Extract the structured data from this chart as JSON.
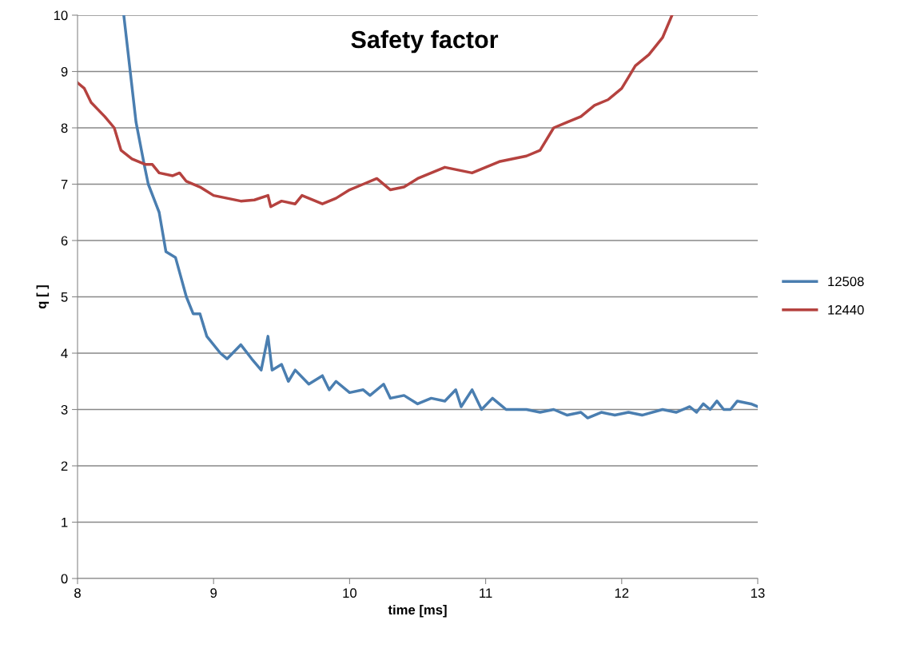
{
  "chart_data": {
    "type": "line",
    "title": "Safety factor",
    "xlabel": "time [ms]",
    "ylabel": "q [ ]",
    "xlim": [
      8,
      13
    ],
    "ylim": [
      0,
      10
    ],
    "xticks": [
      8,
      9,
      10,
      11,
      12,
      13
    ],
    "yticks": [
      0,
      1,
      2,
      3,
      4,
      5,
      6,
      7,
      8,
      9,
      10
    ],
    "grid": "y",
    "legend": "right",
    "marker": "none",
    "line_style": "solid",
    "series": [
      {
        "name": "12508",
        "color": "#4a7eb0",
        "x": [
          8.34,
          8.43,
          8.49,
          8.52,
          8.6,
          8.65,
          8.72,
          8.8,
          8.85,
          8.9,
          8.95,
          9.05,
          9.1,
          9.2,
          9.28,
          9.35,
          9.4,
          9.43,
          9.5,
          9.55,
          9.6,
          9.7,
          9.8,
          9.85,
          9.9,
          10.0,
          10.1,
          10.15,
          10.25,
          10.3,
          10.4,
          10.5,
          10.6,
          10.7,
          10.78,
          10.82,
          10.9,
          10.97,
          11.05,
          11.15,
          11.3,
          11.4,
          11.5,
          11.6,
          11.7,
          11.75,
          11.85,
          11.95,
          12.05,
          12.15,
          12.3,
          12.4,
          12.5,
          12.55,
          12.6,
          12.65,
          12.7,
          12.75,
          12.8,
          12.85,
          12.95,
          13.0
        ],
        "values": [
          10.0,
          8.1,
          7.35,
          7.0,
          6.5,
          5.8,
          5.7,
          5.0,
          4.7,
          4.7,
          4.3,
          4.0,
          3.9,
          4.15,
          3.9,
          3.7,
          4.3,
          3.7,
          3.8,
          3.5,
          3.7,
          3.45,
          3.6,
          3.35,
          3.5,
          3.3,
          3.35,
          3.25,
          3.45,
          3.2,
          3.25,
          3.1,
          3.2,
          3.15,
          3.35,
          3.05,
          3.35,
          3.0,
          3.2,
          3.0,
          3.0,
          2.95,
          3.0,
          2.9,
          2.95,
          2.85,
          2.95,
          2.9,
          2.95,
          2.9,
          3.0,
          2.95,
          3.05,
          2.95,
          3.1,
          3.0,
          3.15,
          3.0,
          3.0,
          3.15,
          3.1,
          3.05
        ]
      },
      {
        "name": "12440",
        "color": "#b5423f",
        "x": [
          8.0,
          8.05,
          8.1,
          8.2,
          8.27,
          8.32,
          8.4,
          8.5,
          8.55,
          8.6,
          8.7,
          8.75,
          8.8,
          8.9,
          9.0,
          9.1,
          9.2,
          9.3,
          9.4,
          9.42,
          9.5,
          9.6,
          9.65,
          9.75,
          9.8,
          9.9,
          10.0,
          10.1,
          10.2,
          10.3,
          10.4,
          10.5,
          10.6,
          10.7,
          10.8,
          10.9,
          11.0,
          11.1,
          11.2,
          11.3,
          11.4,
          11.5,
          11.6,
          11.7,
          11.8,
          11.9,
          12.0,
          12.05,
          12.1,
          12.2,
          12.3,
          12.37
        ],
        "values": [
          8.8,
          8.7,
          8.45,
          8.2,
          8.0,
          7.6,
          7.45,
          7.35,
          7.35,
          7.2,
          7.15,
          7.2,
          7.05,
          6.95,
          6.8,
          6.75,
          6.7,
          6.72,
          6.8,
          6.6,
          6.7,
          6.65,
          6.8,
          6.7,
          6.65,
          6.75,
          6.9,
          7.0,
          7.1,
          6.9,
          6.95,
          7.1,
          7.2,
          7.3,
          7.25,
          7.2,
          7.3,
          7.4,
          7.45,
          7.5,
          7.6,
          8.0,
          8.1,
          8.2,
          8.4,
          8.5,
          8.7,
          8.9,
          9.1,
          9.3,
          9.6,
          10.0
        ]
      }
    ]
  }
}
